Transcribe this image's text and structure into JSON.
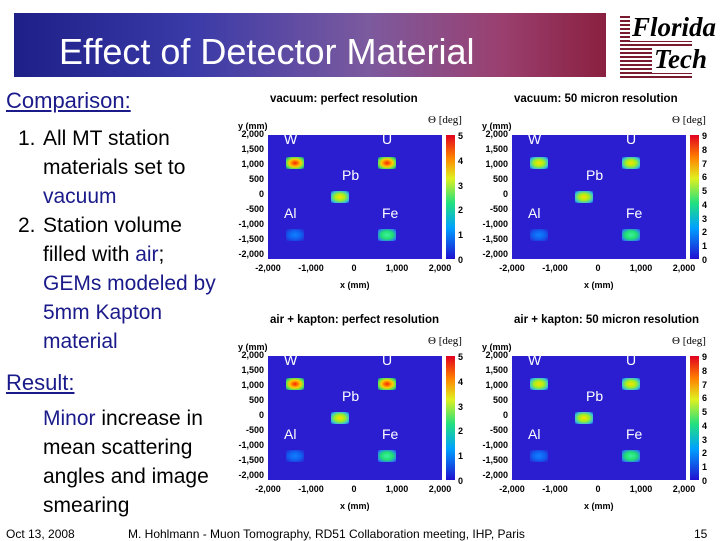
{
  "title": "Effect of Detector Material",
  "logo": {
    "line1": "Florida",
    "line2": "Tech"
  },
  "comparison": {
    "heading": "Comparison:",
    "items": [
      {
        "num": "1.",
        "text_pre": "All MT station materials set to ",
        "highlight": "vacuum",
        "text_post": ""
      },
      {
        "num": "2.",
        "text_pre": "Station volume filled with ",
        "highlight": "air",
        "text_post": "; ",
        "highlight2": "GEMs modeled by 5mm Kapton material"
      }
    ]
  },
  "result": {
    "heading": "Result:",
    "text_hl": "Minor",
    "text": " increase in mean scattering angles and image smearing"
  },
  "footer": {
    "date": "Oct 13, 2008",
    "center": "M. Hohlmann - Muon Tomography, RD51 Collaboration meeting, IHP, Paris",
    "page": "15"
  },
  "panels": [
    {
      "title": "vacuum: perfect resolution",
      "colorbar_ticks": [
        "5",
        "4",
        "3",
        "2",
        "1",
        "0"
      ]
    },
    {
      "title": "vacuum: 50 micron resolution",
      "colorbar_ticks": [
        "9",
        "8",
        "7",
        "6",
        "5",
        "4",
        "3",
        "2",
        "1",
        "0"
      ]
    },
    {
      "title": "air + kapton: perfect resolution",
      "colorbar_ticks": [
        "5",
        "4",
        "3",
        "2",
        "1",
        "0"
      ]
    },
    {
      "title": "air + kapton: 50 micron resolution",
      "colorbar_ticks": [
        "9",
        "8",
        "7",
        "6",
        "5",
        "4",
        "3",
        "2",
        "1",
        "0"
      ]
    }
  ],
  "axes": {
    "y_label": "y (mm)",
    "x_label": "x (mm)",
    "color_label": "Θ [deg]",
    "y_ticks": [
      "2,000",
      "1,500",
      "1,000",
      "500",
      "0",
      "-500",
      "-1,000",
      "-1,500",
      "-2,000"
    ],
    "x_ticks": [
      "-2,000",
      "-1,000",
      "0",
      "1,000",
      "2,000"
    ]
  },
  "materials": [
    "W",
    "U",
    "Pb",
    "Al",
    "Fe"
  ],
  "colors": {
    "banner_start": "#1f1f88",
    "banner_end": "#8a2040",
    "heading": "#1a1a8a",
    "plot_bg": "#2a1ed0"
  }
}
